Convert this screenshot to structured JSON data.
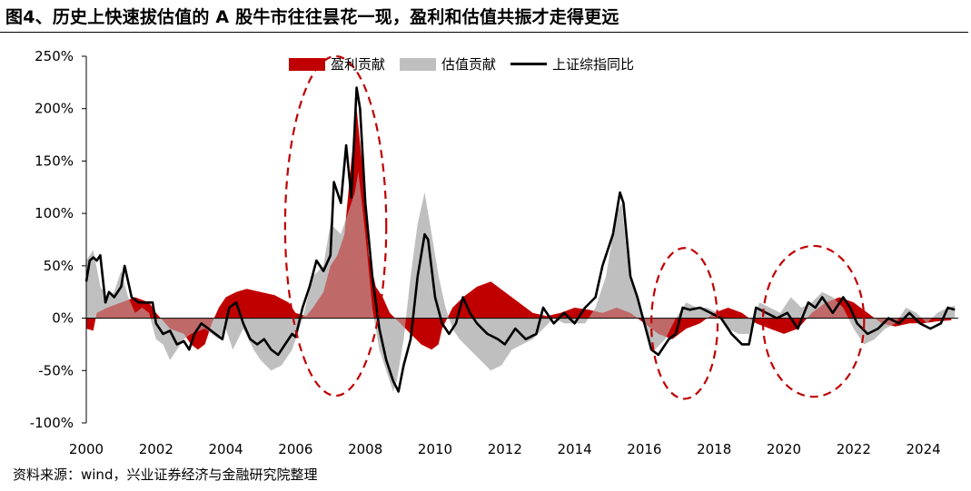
{
  "title": "图4、历史上快速拔估值的 A 股牛市往往昙花一现，盈利和估值共振才走得更远",
  "source": "资料来源：wind，兴业证券经济与金融研究院整理",
  "colors": {
    "earnings": "#c00000",
    "valuation": "#bfbfbf",
    "index": "#000000",
    "ellipse": "#c00000"
  },
  "chart_data": {
    "type": "area",
    "x_ticks": [
      "2000",
      "2002",
      "2004",
      "2006",
      "2008",
      "2010",
      "2012",
      "2014",
      "2016",
      "2018",
      "2020",
      "2022",
      "2024"
    ],
    "y_ticks": [
      "250%",
      "200%",
      "150%",
      "100%",
      "50%",
      "0%",
      "-50%",
      "-100%"
    ],
    "xlim": [
      2000,
      2025
    ],
    "ylim": [
      -100,
      250
    ],
    "legend_position": "top",
    "annotations": "dashed red ellipses around 2006-2008, 2016-2018, 2019.5-2022",
    "series": [
      {
        "name": "盈利贡献",
        "type": "area",
        "points": [
          [
            2000.0,
            -10
          ],
          [
            2000.2,
            -12
          ],
          [
            2000.3,
            5
          ],
          [
            2000.6,
            10
          ],
          [
            2001.0,
            15
          ],
          [
            2001.4,
            20
          ],
          [
            2001.8,
            15
          ],
          [
            2002.0,
            5
          ],
          [
            2002.4,
            -10
          ],
          [
            2002.8,
            -15
          ],
          [
            2003.0,
            -25
          ],
          [
            2003.2,
            -30
          ],
          [
            2003.4,
            -25
          ],
          [
            2003.6,
            -5
          ],
          [
            2003.8,
            10
          ],
          [
            2004.0,
            20
          ],
          [
            2004.3,
            25
          ],
          [
            2004.6,
            28
          ],
          [
            2005.0,
            25
          ],
          [
            2005.4,
            22
          ],
          [
            2005.8,
            15
          ],
          [
            2006.0,
            5
          ],
          [
            2006.3,
            2
          ],
          [
            2006.5,
            10
          ],
          [
            2006.8,
            25
          ],
          [
            2007.0,
            50
          ],
          [
            2007.2,
            60
          ],
          [
            2007.4,
            80
          ],
          [
            2007.6,
            150
          ],
          [
            2007.75,
            200
          ],
          [
            2007.9,
            150
          ],
          [
            2008.1,
            60
          ],
          [
            2008.3,
            30
          ],
          [
            2008.5,
            20
          ],
          [
            2008.7,
            5
          ],
          [
            2009.0,
            -5
          ],
          [
            2009.3,
            -15
          ],
          [
            2009.6,
            -25
          ],
          [
            2009.9,
            -30
          ],
          [
            2010.1,
            -25
          ],
          [
            2010.2,
            -10
          ],
          [
            2010.5,
            10
          ],
          [
            2010.8,
            20
          ],
          [
            2011.2,
            30
          ],
          [
            2011.6,
            35
          ],
          [
            2012.0,
            25
          ],
          [
            2012.4,
            15
          ],
          [
            2012.8,
            5
          ],
          [
            2013.2,
            2
          ],
          [
            2013.6,
            5
          ],
          [
            2014.0,
            10
          ],
          [
            2014.4,
            8
          ],
          [
            2014.8,
            5
          ],
          [
            2015.2,
            10
          ],
          [
            2015.6,
            5
          ],
          [
            2016.0,
            -5
          ],
          [
            2016.4,
            -15
          ],
          [
            2016.8,
            -20
          ],
          [
            2017.2,
            -10
          ],
          [
            2017.6,
            -5
          ],
          [
            2018.0,
            5
          ],
          [
            2018.4,
            10
          ],
          [
            2018.8,
            5
          ],
          [
            2019.2,
            -5
          ],
          [
            2019.6,
            -10
          ],
          [
            2020.0,
            -15
          ],
          [
            2020.4,
            -10
          ],
          [
            2020.8,
            5
          ],
          [
            2021.2,
            15
          ],
          [
            2021.6,
            20
          ],
          [
            2022.0,
            15
          ],
          [
            2022.4,
            5
          ],
          [
            2022.8,
            -5
          ],
          [
            2023.2,
            -8
          ],
          [
            2023.6,
            -5
          ],
          [
            2024.0,
            -5
          ],
          [
            2024.4,
            -3
          ],
          [
            2024.8,
            -2
          ]
        ]
      },
      {
        "name": "估值贡献",
        "type": "area",
        "points": [
          [
            2000.0,
            55
          ],
          [
            2000.2,
            65
          ],
          [
            2000.4,
            30
          ],
          [
            2000.6,
            20
          ],
          [
            2000.8,
            25
          ],
          [
            2001.0,
            45
          ],
          [
            2001.2,
            20
          ],
          [
            2001.4,
            5
          ],
          [
            2001.6,
            10
          ],
          [
            2001.8,
            5
          ],
          [
            2002.0,
            -20
          ],
          [
            2002.2,
            -25
          ],
          [
            2002.4,
            -40
          ],
          [
            2002.6,
            -30
          ],
          [
            2002.8,
            -20
          ],
          [
            2003.0,
            -15
          ],
          [
            2003.4,
            -10
          ],
          [
            2003.8,
            -20
          ],
          [
            2004.0,
            -10
          ],
          [
            2004.2,
            -30
          ],
          [
            2004.5,
            -10
          ],
          [
            2004.8,
            -30
          ],
          [
            2005.0,
            -40
          ],
          [
            2005.3,
            -50
          ],
          [
            2005.6,
            -45
          ],
          [
            2005.9,
            -30
          ],
          [
            2006.0,
            -20
          ],
          [
            2006.2,
            0
          ],
          [
            2006.5,
            40
          ],
          [
            2006.8,
            50
          ],
          [
            2007.0,
            90
          ],
          [
            2007.3,
            80
          ],
          [
            2007.5,
            100
          ],
          [
            2007.7,
            120
          ],
          [
            2007.8,
            140
          ],
          [
            2008.0,
            80
          ],
          [
            2008.2,
            10
          ],
          [
            2008.4,
            -30
          ],
          [
            2008.6,
            -50
          ],
          [
            2008.8,
            -70
          ],
          [
            2008.9,
            -60
          ],
          [
            2009.1,
            -20
          ],
          [
            2009.3,
            40
          ],
          [
            2009.5,
            90
          ],
          [
            2009.7,
            120
          ],
          [
            2009.9,
            80
          ],
          [
            2010.1,
            40
          ],
          [
            2010.3,
            10
          ],
          [
            2010.5,
            -10
          ],
          [
            2010.7,
            -20
          ],
          [
            2011.0,
            -30
          ],
          [
            2011.3,
            -40
          ],
          [
            2011.6,
            -50
          ],
          [
            2011.9,
            -45
          ],
          [
            2012.2,
            -30
          ],
          [
            2012.5,
            -25
          ],
          [
            2012.8,
            -20
          ],
          [
            2013.1,
            -10
          ],
          [
            2013.4,
            0
          ],
          [
            2013.7,
            -5
          ],
          [
            2014.0,
            -5
          ],
          [
            2014.3,
            -5
          ],
          [
            2014.6,
            10
          ],
          [
            2014.9,
            40
          ],
          [
            2015.2,
            100
          ],
          [
            2015.35,
            110
          ],
          [
            2015.5,
            60
          ],
          [
            2015.7,
            30
          ],
          [
            2015.9,
            10
          ],
          [
            2016.1,
            -20
          ],
          [
            2016.3,
            -30
          ],
          [
            2016.6,
            -20
          ],
          [
            2016.9,
            0
          ],
          [
            2017.2,
            15
          ],
          [
            2017.5,
            10
          ],
          [
            2017.8,
            10
          ],
          [
            2018.1,
            5
          ],
          [
            2018.4,
            -10
          ],
          [
            2018.7,
            -15
          ],
          [
            2019.0,
            -15
          ],
          [
            2019.3,
            15
          ],
          [
            2019.6,
            10
          ],
          [
            2019.9,
            5
          ],
          [
            2020.2,
            20
          ],
          [
            2020.5,
            10
          ],
          [
            2020.8,
            15
          ],
          [
            2021.1,
            25
          ],
          [
            2021.4,
            20
          ],
          [
            2021.7,
            10
          ],
          [
            2022.0,
            -10
          ],
          [
            2022.3,
            -25
          ],
          [
            2022.6,
            -20
          ],
          [
            2022.9,
            -10
          ],
          [
            2023.2,
            -5
          ],
          [
            2023.5,
            10
          ],
          [
            2023.8,
            5
          ],
          [
            2024.1,
            -5
          ],
          [
            2024.4,
            5
          ],
          [
            2024.7,
            10
          ],
          [
            2024.9,
            12
          ]
        ]
      },
      {
        "name": "上证综指同比",
        "type": "line",
        "points": [
          [
            2000.0,
            35
          ],
          [
            2000.1,
            55
          ],
          [
            2000.2,
            58
          ],
          [
            2000.3,
            55
          ],
          [
            2000.4,
            60
          ],
          [
            2000.55,
            15
          ],
          [
            2000.65,
            25
          ],
          [
            2000.8,
            20
          ],
          [
            2001.0,
            30
          ],
          [
            2001.1,
            50
          ],
          [
            2001.3,
            20
          ],
          [
            2001.5,
            15
          ],
          [
            2001.7,
            15
          ],
          [
            2001.9,
            15
          ],
          [
            2002.0,
            -5
          ],
          [
            2002.2,
            -15
          ],
          [
            2002.4,
            -12
          ],
          [
            2002.6,
            -25
          ],
          [
            2002.8,
            -22
          ],
          [
            2002.95,
            -30
          ],
          [
            2003.1,
            -15
          ],
          [
            2003.3,
            -5
          ],
          [
            2003.5,
            -10
          ],
          [
            2003.7,
            -15
          ],
          [
            2003.9,
            -20
          ],
          [
            2004.1,
            10
          ],
          [
            2004.3,
            15
          ],
          [
            2004.5,
            -5
          ],
          [
            2004.7,
            -20
          ],
          [
            2004.9,
            -25
          ],
          [
            2005.1,
            -20
          ],
          [
            2005.3,
            -30
          ],
          [
            2005.5,
            -35
          ],
          [
            2005.7,
            -25
          ],
          [
            2005.9,
            -15
          ],
          [
            2006.0,
            -18
          ],
          [
            2006.2,
            10
          ],
          [
            2006.4,
            30
          ],
          [
            2006.6,
            55
          ],
          [
            2006.8,
            45
          ],
          [
            2007.0,
            60
          ],
          [
            2007.1,
            130
          ],
          [
            2007.3,
            110
          ],
          [
            2007.45,
            165
          ],
          [
            2007.6,
            115
          ],
          [
            2007.75,
            220
          ],
          [
            2007.85,
            200
          ],
          [
            2008.0,
            110
          ],
          [
            2008.2,
            40
          ],
          [
            2008.4,
            -10
          ],
          [
            2008.6,
            -40
          ],
          [
            2008.8,
            -60
          ],
          [
            2008.95,
            -70
          ],
          [
            2009.1,
            -45
          ],
          [
            2009.3,
            -20
          ],
          [
            2009.5,
            40
          ],
          [
            2009.7,
            80
          ],
          [
            2009.8,
            75
          ],
          [
            2010.0,
            20
          ],
          [
            2010.2,
            -5
          ],
          [
            2010.4,
            -15
          ],
          [
            2010.6,
            -5
          ],
          [
            2010.8,
            20
          ],
          [
            2011.0,
            5
          ],
          [
            2011.2,
            -5
          ],
          [
            2011.5,
            -15
          ],
          [
            2011.8,
            -20
          ],
          [
            2012.0,
            -25
          ],
          [
            2012.3,
            -10
          ],
          [
            2012.6,
            -20
          ],
          [
            2012.9,
            -15
          ],
          [
            2013.1,
            10
          ],
          [
            2013.4,
            -5
          ],
          [
            2013.7,
            5
          ],
          [
            2014.0,
            -5
          ],
          [
            2014.3,
            10
          ],
          [
            2014.6,
            20
          ],
          [
            2014.8,
            50
          ],
          [
            2015.1,
            80
          ],
          [
            2015.3,
            120
          ],
          [
            2015.4,
            110
          ],
          [
            2015.6,
            40
          ],
          [
            2015.8,
            20
          ],
          [
            2016.0,
            -5
          ],
          [
            2016.2,
            -30
          ],
          [
            2016.4,
            -35
          ],
          [
            2016.7,
            -20
          ],
          [
            2016.9,
            -15
          ],
          [
            2017.1,
            10
          ],
          [
            2017.3,
            8
          ],
          [
            2017.6,
            10
          ],
          [
            2017.9,
            5
          ],
          [
            2018.2,
            0
          ],
          [
            2018.5,
            -15
          ],
          [
            2018.8,
            -25
          ],
          [
            2019.0,
            -25
          ],
          [
            2019.2,
            10
          ],
          [
            2019.5,
            5
          ],
          [
            2019.8,
            0
          ],
          [
            2020.1,
            5
          ],
          [
            2020.4,
            -10
          ],
          [
            2020.7,
            15
          ],
          [
            2020.9,
            10
          ],
          [
            2021.1,
            20
          ],
          [
            2021.4,
            5
          ],
          [
            2021.7,
            20
          ],
          [
            2021.9,
            10
          ],
          [
            2022.1,
            -5
          ],
          [
            2022.4,
            -15
          ],
          [
            2022.7,
            -10
          ],
          [
            2023.0,
            0
          ],
          [
            2023.3,
            -5
          ],
          [
            2023.6,
            5
          ],
          [
            2023.9,
            -5
          ],
          [
            2024.2,
            -10
          ],
          [
            2024.5,
            -5
          ],
          [
            2024.7,
            10
          ],
          [
            2024.9,
            8
          ]
        ]
      }
    ]
  }
}
